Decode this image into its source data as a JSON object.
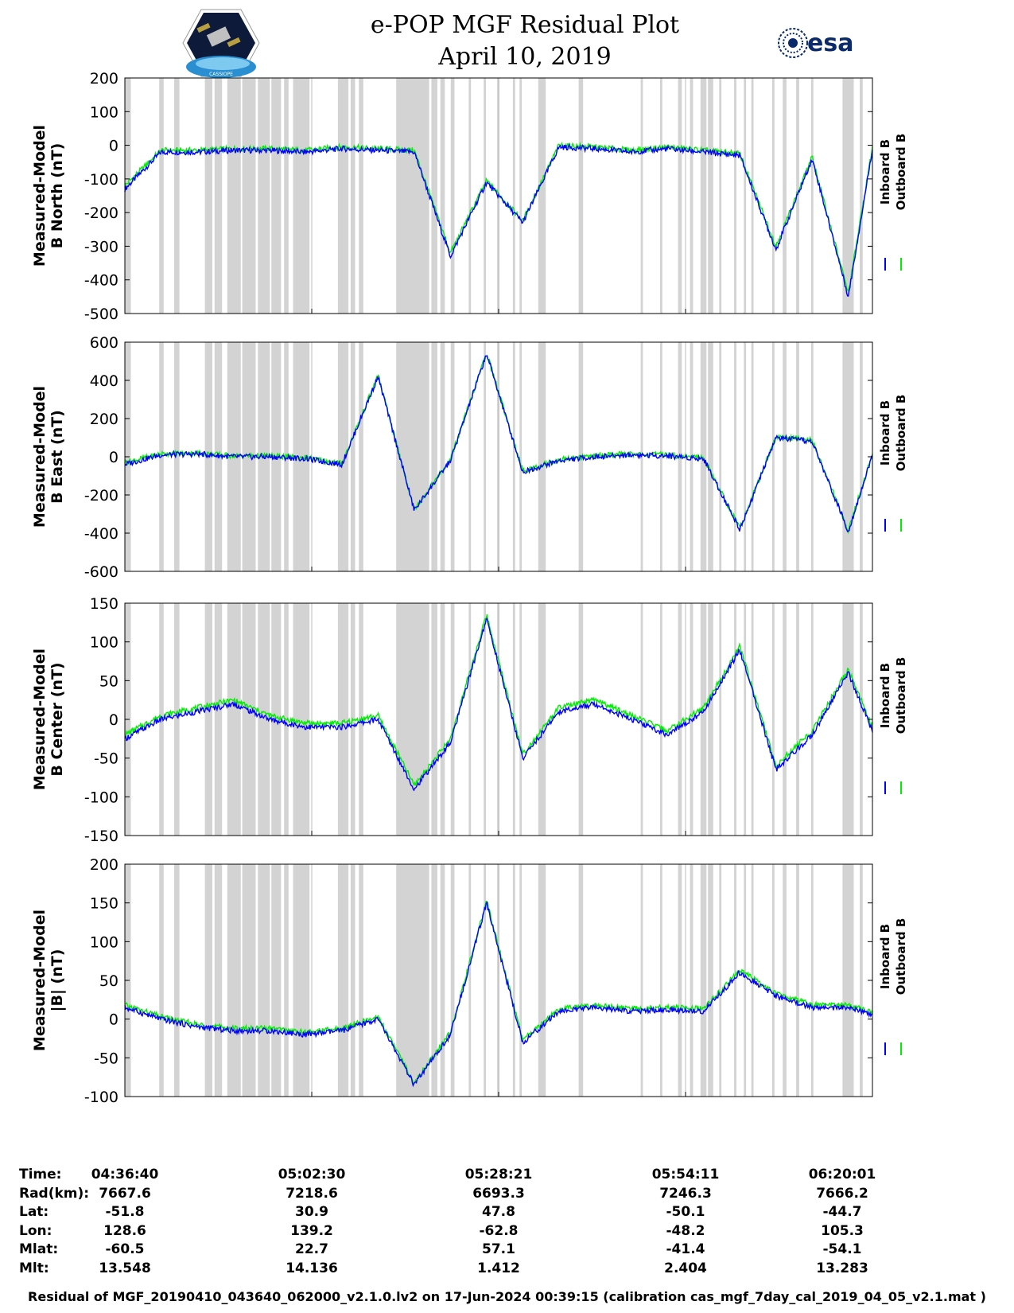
{
  "header": {
    "title": "e-POP MGF Residual Plot",
    "date": "April 10, 2019",
    "left_logo": "cassiope-mission-logo",
    "left_logo_text": "CASSIOPE",
    "right_logo": "esa-logo",
    "right_logo_text": "esa"
  },
  "legend": {
    "inboard_label": "Inboard B",
    "outboard_label": "Outboard B",
    "inboard_color": "#0000ff",
    "outboard_color": "#00ee00"
  },
  "colors": {
    "gap_shading": "#d3d3d3",
    "frame": "#000000"
  },
  "chart_data": [
    {
      "type": "line",
      "ylabel": "Measured-Model\nB North (nT)",
      "ylim": [
        -500,
        200
      ],
      "yticks": [
        200,
        100,
        0,
        -100,
        -200,
        -300,
        -400,
        -500
      ],
      "x": [
        0,
        300,
        600,
        900,
        1200,
        1500,
        1800,
        2100,
        2400,
        2700,
        3000,
        3300,
        3600,
        3900,
        4200,
        4500,
        4800,
        5100,
        5400,
        5700,
        6000,
        6200
      ],
      "series": [
        {
          "name": "Inboard B",
          "values": [
            -130,
            -20,
            -20,
            -15,
            -15,
            -20,
            -10,
            -15,
            -20,
            -330,
            -110,
            -230,
            -5,
            -10,
            -20,
            -10,
            -20,
            -30,
            -310,
            -40,
            -450,
            -10
          ]
        },
        {
          "name": "Outboard B",
          "values": [
            -120,
            -15,
            -15,
            -10,
            -10,
            -15,
            -5,
            -10,
            -15,
            -320,
            -105,
            -225,
            0,
            -5,
            -15,
            -5,
            -15,
            -25,
            -300,
            -35,
            -440,
            -5
          ]
        }
      ]
    },
    {
      "type": "line",
      "ylabel": "Measured-Model\nB East (nT)",
      "ylim": [
        -600,
        600
      ],
      "yticks": [
        600,
        400,
        200,
        0,
        -200,
        -400,
        -600
      ],
      "x": [
        0,
        300,
        600,
        900,
        1200,
        1500,
        1800,
        2100,
        2400,
        2700,
        3000,
        3300,
        3600,
        3900,
        4200,
        4500,
        4800,
        5100,
        5400,
        5700,
        6000,
        6200
      ],
      "series": [
        {
          "name": "Inboard B",
          "values": [
            -40,
            10,
            15,
            0,
            0,
            -10,
            -40,
            420,
            -280,
            -20,
            540,
            -80,
            -20,
            0,
            10,
            5,
            -10,
            -380,
            100,
            80,
            -390,
            10
          ]
        },
        {
          "name": "Outboard B",
          "values": [
            -30,
            15,
            20,
            5,
            5,
            -5,
            -35,
            425,
            -275,
            -15,
            545,
            -75,
            -15,
            5,
            15,
            10,
            -5,
            -375,
            105,
            85,
            -385,
            15
          ]
        }
      ]
    },
    {
      "type": "line",
      "ylabel": "Measured-Model\nB Center (nT)",
      "ylim": [
        -150,
        150
      ],
      "yticks": [
        150,
        100,
        50,
        0,
        -50,
        -100,
        -150
      ],
      "x": [
        0,
        300,
        600,
        900,
        1200,
        1500,
        1800,
        2100,
        2400,
        2700,
        3000,
        3300,
        3600,
        3900,
        4200,
        4500,
        4800,
        5100,
        5400,
        5700,
        6000,
        6200
      ],
      "series": [
        {
          "name": "Inboard B",
          "values": [
            -25,
            0,
            10,
            20,
            0,
            -10,
            -10,
            0,
            -90,
            -30,
            130,
            -50,
            10,
            20,
            0,
            -20,
            10,
            90,
            -65,
            -20,
            60,
            -15
          ]
        },
        {
          "name": "Outboard B",
          "values": [
            -20,
            5,
            15,
            25,
            5,
            -5,
            -5,
            5,
            -85,
            -25,
            135,
            -45,
            15,
            25,
            5,
            -15,
            15,
            95,
            -60,
            -15,
            65,
            -10
          ]
        }
      ]
    },
    {
      "type": "line",
      "ylabel": "Measured-Model\n|B| (nT)",
      "ylim": [
        -100,
        200
      ],
      "yticks": [
        200,
        150,
        100,
        50,
        0,
        -50,
        -100
      ],
      "x": [
        0,
        300,
        600,
        900,
        1200,
        1500,
        1800,
        2100,
        2400,
        2700,
        3000,
        3300,
        3600,
        3900,
        4200,
        4500,
        4800,
        5100,
        5400,
        5700,
        6000,
        6200
      ],
      "series": [
        {
          "name": "Inboard B",
          "values": [
            15,
            0,
            -10,
            -15,
            -15,
            -20,
            -15,
            0,
            -85,
            -20,
            150,
            -30,
            10,
            15,
            10,
            12,
            10,
            60,
            30,
            15,
            15,
            5
          ]
        },
        {
          "name": "Outboard B",
          "values": [
            18,
            3,
            -7,
            -12,
            -12,
            -17,
            -12,
            3,
            -82,
            -17,
            153,
            -27,
            13,
            18,
            13,
            15,
            13,
            63,
            33,
            18,
            18,
            8
          ]
        }
      ]
    }
  ],
  "info_table": {
    "labels": [
      "Time:",
      "Rad(km):",
      "Lat:",
      "Lon:",
      "Mlat:",
      "Mlt:"
    ],
    "columns": [
      {
        "time": "04:36:40",
        "rad": "7667.6",
        "lat": "-51.8",
        "lon": "128.6",
        "mlat": "-60.5",
        "mlt": "13.548"
      },
      {
        "time": "05:02:30",
        "rad": "7218.6",
        "lat": "30.9",
        "lon": "139.2",
        "mlat": "22.7",
        "mlt": "14.136"
      },
      {
        "time": "05:28:21",
        "rad": "6693.3",
        "lat": "47.8",
        "lon": "-62.8",
        "mlat": "57.1",
        "mlt": "1.412"
      },
      {
        "time": "05:54:11",
        "rad": "7246.3",
        "lat": "-50.1",
        "lon": "-48.2",
        "mlat": "-41.4",
        "mlt": "2.404"
      },
      {
        "time": "06:20:01",
        "rad": "7666.2",
        "lat": "-44.7",
        "lon": "105.3",
        "mlat": "-54.1",
        "mlt": "13.283"
      }
    ]
  },
  "footer": "Residual of MGF_20190410_043640_062000_v2.1.0.lv2 on 17-Jun-2024 00:39:15 (calibration cas_mgf_7day_cal_2019_04_05_v2.1.mat )"
}
